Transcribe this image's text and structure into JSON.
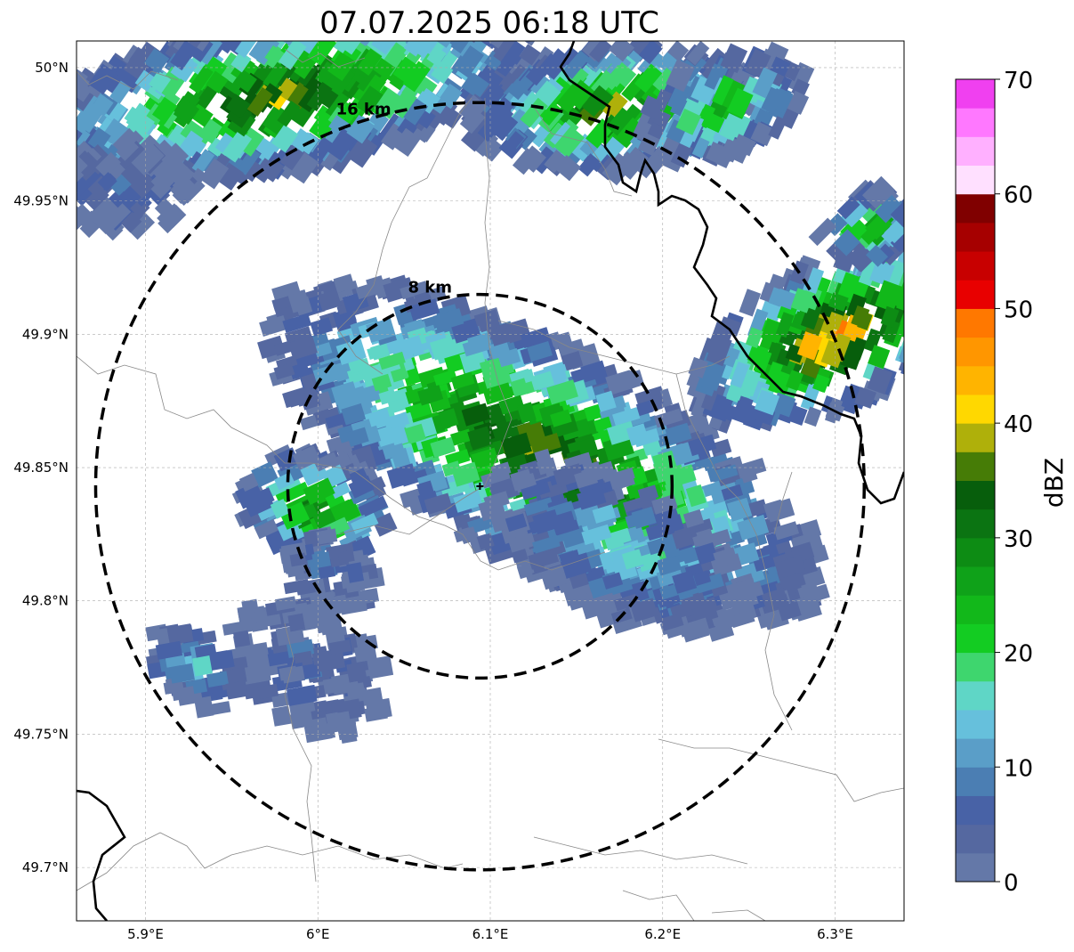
{
  "title": "07.07.2025 06:18 UTC",
  "map": {
    "lon_range": [
      5.86,
      6.34
    ],
    "lat_range": [
      49.68,
      50.01
    ],
    "lat_ticks": [
      "49.7°N",
      "49.75°N",
      "49.8°N",
      "49.85°N",
      "49.9°N",
      "49.95°N",
      "50°N"
    ],
    "lat_tick_values": [
      49.7,
      49.75,
      49.8,
      49.85,
      49.9,
      49.95,
      50.0
    ],
    "lon_ticks": [
      "5.9°E",
      "6°E",
      "6.1°E",
      "6.2°E",
      "6.3°E"
    ],
    "lon_tick_values": [
      5.9,
      6.0,
      6.1,
      6.2,
      6.3
    ],
    "gridlines": true,
    "radar_center": {
      "lon": 6.094,
      "lat": 49.843
    },
    "range_rings": [
      {
        "label": "8 km",
        "radius_km": 8
      },
      {
        "label": "16 km",
        "radius_km": 16
      }
    ]
  },
  "colorbar": {
    "label": "dBZ",
    "min": 0,
    "max": 70,
    "ticks": [
      "0",
      "10",
      "20",
      "30",
      "40",
      "50",
      "60",
      "70"
    ],
    "colors": [
      "#6478a8",
      "#5568a0",
      "#4862a6",
      "#4b7eb3",
      "#5a9ec8",
      "#66c0dc",
      "#5fd6c6",
      "#3ed66e",
      "#13cc22",
      "#12b81a",
      "#0fa219",
      "#0d8c14",
      "#0b7412",
      "#075e0c",
      "#467c06",
      "#afb00a",
      "#ffd800",
      "#ffb400",
      "#ff9600",
      "#ff7800",
      "#e80000",
      "#c80000",
      "#a60000",
      "#800000",
      "#ffe0ff",
      "#ffb0ff",
      "#ff78ff",
      "#f040f0"
    ]
  },
  "echo_regions": [
    {
      "name": "northwest-band",
      "lon": 5.98,
      "lat": 49.99,
      "rx_km": 11,
      "ry_km": 3.2,
      "angle_deg": -10,
      "peak_dbz": 39
    },
    {
      "name": "northwest-edge",
      "lon": 5.885,
      "lat": 49.955,
      "rx_km": 3,
      "ry_km": 2,
      "angle_deg": 0,
      "peak_dbz": 7
    },
    {
      "name": "north-cell",
      "lon": 6.17,
      "lat": 49.985,
      "rx_km": 6,
      "ry_km": 2.6,
      "angle_deg": -5,
      "peak_dbz": 37
    },
    {
      "name": "north-east-cell",
      "lon": 6.235,
      "lat": 49.985,
      "rx_km": 3.5,
      "ry_km": 2,
      "angle_deg": -20,
      "peak_dbz": 30
    },
    {
      "name": "main-cell",
      "lon": 6.13,
      "lat": 49.855,
      "rx_km": 13,
      "ry_km": 4.6,
      "angle_deg": 28,
      "peak_dbz": 40
    },
    {
      "name": "main-cell-south",
      "lon": 6.175,
      "lat": 49.82,
      "rx_km": 6,
      "ry_km": 2.8,
      "angle_deg": 28,
      "peak_dbz": 17
    },
    {
      "name": "east-cell",
      "lon": 6.3,
      "lat": 49.9,
      "rx_km": 6.5,
      "ry_km": 3,
      "angle_deg": -25,
      "peak_dbz": 49
    },
    {
      "name": "east-cell-north",
      "lon": 6.32,
      "lat": 49.94,
      "rx_km": 2,
      "ry_km": 1.5,
      "angle_deg": 0,
      "peak_dbz": 30
    },
    {
      "name": "west-cell",
      "lon": 6.0,
      "lat": 49.835,
      "rx_km": 3.2,
      "ry_km": 2.2,
      "angle_deg": 20,
      "peak_dbz": 34
    },
    {
      "name": "west-cell-tail",
      "lon": 6.005,
      "lat": 49.812,
      "rx_km": 2.2,
      "ry_km": 1.4,
      "angle_deg": 35,
      "peak_dbz": 8
    },
    {
      "name": "southwest-cell",
      "lon": 5.995,
      "lat": 49.775,
      "rx_km": 3.6,
      "ry_km": 2.4,
      "angle_deg": 35,
      "peak_dbz": 7
    },
    {
      "name": "far-southwest-cell",
      "lon": 5.93,
      "lat": 49.775,
      "rx_km": 2.3,
      "ry_km": 1.4,
      "angle_deg": 35,
      "peak_dbz": 16
    }
  ]
}
